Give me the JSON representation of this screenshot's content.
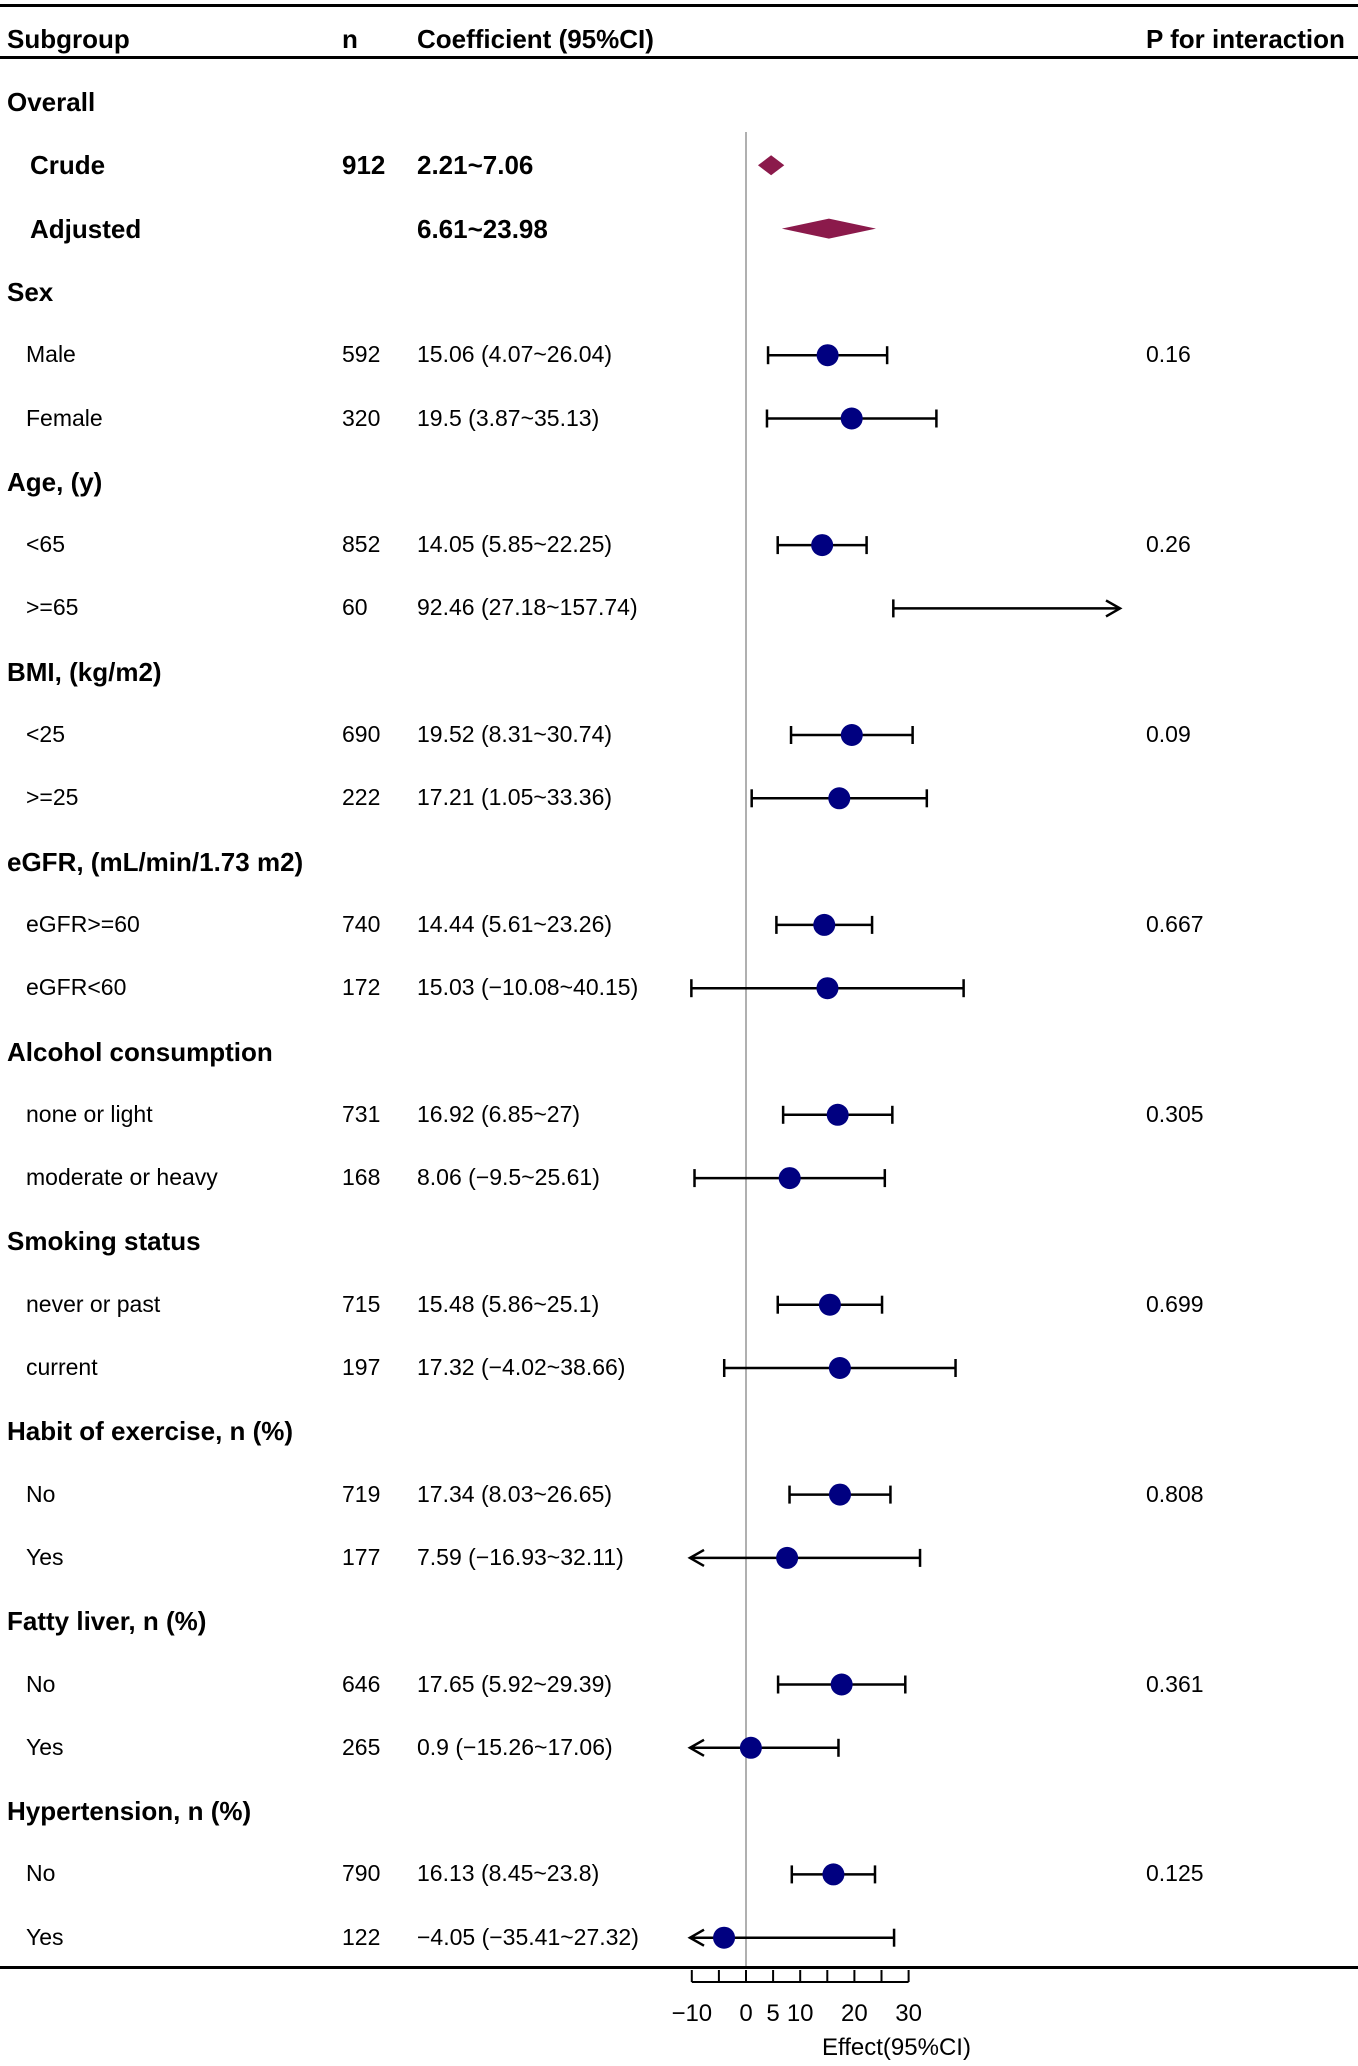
{
  "chart_data": {
    "type": "forest",
    "columns": {
      "subgroup": "Subgroup",
      "n": "n",
      "coef": "Coefficient (95%CI)",
      "p": "P for interaction"
    },
    "xlabel": "Effect(95%CI)",
    "x_ticks": [
      -10,
      0,
      5,
      10,
      20,
      30
    ],
    "x_tick_labels": [
      "−10",
      "0",
      "5",
      "10",
      "20",
      "30"
    ],
    "xlim": [
      -10,
      30
    ],
    "reference_line": 0,
    "colors": {
      "point": "#000080",
      "diamond": "#8b1a4b",
      "line": "#000000",
      "ref": "#b0b0b0"
    },
    "rows": [
      {
        "kind": "group",
        "label": "Overall"
      },
      {
        "kind": "overall",
        "label": "Crude",
        "n": "912",
        "text": "2.21~7.06",
        "lo": 2.21,
        "hi": 7.06
      },
      {
        "kind": "overall",
        "label": "Adjusted",
        "n": "",
        "text": "6.61~23.98",
        "lo": 6.61,
        "hi": 23.98
      },
      {
        "kind": "group",
        "label": "Sex"
      },
      {
        "kind": "item",
        "label": "Male",
        "n": "592",
        "text": "15.06 (4.07~26.04)",
        "est": 15.06,
        "lo": 4.07,
        "hi": 26.04,
        "p": "0.16"
      },
      {
        "kind": "item",
        "label": "Female",
        "n": "320",
        "text": "19.5 (3.87~35.13)",
        "est": 19.5,
        "lo": 3.87,
        "hi": 35.13,
        "p": ""
      },
      {
        "kind": "group",
        "label": "Age, (y)"
      },
      {
        "kind": "item",
        "label": "<65",
        "n": "852",
        "text": "14.05 (5.85~22.25)",
        "est": 14.05,
        "lo": 5.85,
        "hi": 22.25,
        "p": "0.26"
      },
      {
        "kind": "item",
        "label": ">=65",
        "n": "60",
        "text": "92.46 (27.18~157.74)",
        "est": 92.46,
        "lo": 27.18,
        "hi": 157.74,
        "p": ""
      },
      {
        "kind": "group",
        "label": "BMI, (kg/m2)"
      },
      {
        "kind": "item",
        "label": "<25",
        "n": "690",
        "text": "19.52 (8.31~30.74)",
        "est": 19.52,
        "lo": 8.31,
        "hi": 30.74,
        "p": "0.09"
      },
      {
        "kind": "item",
        "label": ">=25",
        "n": "222",
        "text": "17.21 (1.05~33.36)",
        "est": 17.21,
        "lo": 1.05,
        "hi": 33.36,
        "p": ""
      },
      {
        "kind": "group",
        "label": "eGFR, (mL/min/1.73 m2)"
      },
      {
        "kind": "item",
        "label": "eGFR>=60",
        "n": "740",
        "text": "14.44 (5.61~23.26)",
        "est": 14.44,
        "lo": 5.61,
        "hi": 23.26,
        "p": "0.667"
      },
      {
        "kind": "item",
        "label": "eGFR<60",
        "n": "172",
        "text": "15.03 (−10.08~40.15)",
        "est": 15.03,
        "lo": -10.08,
        "hi": 40.15,
        "p": ""
      },
      {
        "kind": "group",
        "label": "Alcohol consumption"
      },
      {
        "kind": "item",
        "label": "none or light",
        "n": "731",
        "text": "16.92 (6.85~27)",
        "est": 16.92,
        "lo": 6.85,
        "hi": 27,
        "p": "0.305"
      },
      {
        "kind": "item",
        "label": "moderate or heavy",
        "n": "168",
        "text": "8.06 (−9.5~25.61)",
        "est": 8.06,
        "lo": -9.5,
        "hi": 25.61,
        "p": ""
      },
      {
        "kind": "group",
        "label": "Smoking status"
      },
      {
        "kind": "item",
        "label": "never or past",
        "n": "715",
        "text": "15.48 (5.86~25.1)",
        "est": 15.48,
        "lo": 5.86,
        "hi": 25.1,
        "p": "0.699"
      },
      {
        "kind": "item",
        "label": "current",
        "n": "197",
        "text": "17.32 (−4.02~38.66)",
        "est": 17.32,
        "lo": -4.02,
        "hi": 38.66,
        "p": ""
      },
      {
        "kind": "group",
        "label": "Habit of exercise, n (%)"
      },
      {
        "kind": "item",
        "label": "No",
        "n": "719",
        "text": "17.34 (8.03~26.65)",
        "est": 17.34,
        "lo": 8.03,
        "hi": 26.65,
        "p": "0.808"
      },
      {
        "kind": "item",
        "label": "Yes",
        "n": "177",
        "text": "7.59 (−16.93~32.11)",
        "est": 7.59,
        "lo": -16.93,
        "hi": 32.11,
        "p": ""
      },
      {
        "kind": "group",
        "label": "Fatty liver, n (%)"
      },
      {
        "kind": "item",
        "label": "No",
        "n": "646",
        "text": "17.65 (5.92~29.39)",
        "est": 17.65,
        "lo": 5.92,
        "hi": 29.39,
        "p": "0.361"
      },
      {
        "kind": "item",
        "label": "Yes",
        "n": "265",
        "text": "0.9 (−15.26~17.06)",
        "est": 0.9,
        "lo": -15.26,
        "hi": 17.06,
        "p": ""
      },
      {
        "kind": "group",
        "label": "Hypertension, n (%)"
      },
      {
        "kind": "item",
        "label": "No",
        "n": "790",
        "text": "16.13 (8.45~23.8)",
        "est": 16.13,
        "lo": 8.45,
        "hi": 23.8,
        "p": "0.125"
      },
      {
        "kind": "item",
        "label": "Yes",
        "n": "122",
        "text": "−4.05 (−35.41~27.32)",
        "est": -4.05,
        "lo": -35.41,
        "hi": 27.32,
        "p": ""
      }
    ]
  }
}
